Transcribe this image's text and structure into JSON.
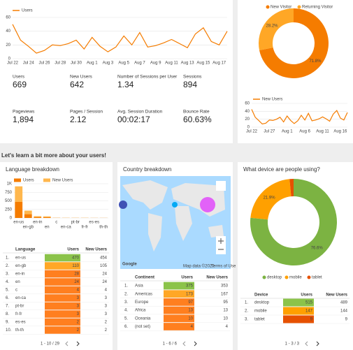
{
  "chart_data": [
    {
      "type": "line",
      "categories": [
        "Jul 22",
        null,
        "Jul 24",
        null,
        "Jul 26",
        null,
        "Jul 28",
        null,
        "Jul 30",
        null,
        "Aug 1",
        null,
        "Aug 3",
        null,
        "Aug 5",
        null,
        "Aug 7",
        null,
        "Aug 9",
        null,
        "Aug 11",
        null,
        "Aug 13",
        null,
        "Aug 15",
        null,
        "Aug 17",
        null
      ],
      "series": [
        {
          "name": "Users",
          "color": "#f57c00",
          "values": [
            50,
            27,
            18,
            8,
            12,
            20,
            19,
            22,
            27,
            14,
            31,
            18,
            10,
            17,
            33,
            20,
            38,
            17,
            19,
            23,
            28,
            22,
            16,
            36,
            45,
            25,
            20,
            40
          ]
        }
      ],
      "ylim": [
        0,
        60
      ],
      "yticks": [
        0,
        20,
        40,
        60
      ],
      "grid": true
    },
    {
      "type": "pie",
      "categories": [
        "New Visitor",
        "Returning Visitor"
      ],
      "values": [
        71.8,
        28.2
      ],
      "value_labels": [
        "71.8%",
        "28.2%"
      ],
      "colors": [
        "#f57c00",
        "#ffa726"
      ]
    },
    {
      "type": "line",
      "categories": [
        "Jul 22",
        null,
        null,
        null,
        null,
        "Jul 27",
        null,
        null,
        null,
        null,
        "Aug 1",
        null,
        null,
        null,
        null,
        "Aug 6",
        null,
        null,
        null,
        null,
        "Aug 11",
        null,
        null,
        null,
        null,
        "Aug 16",
        null,
        null
      ],
      "series": [
        {
          "name": "New Users",
          "color": "#f57c00",
          "values": [
            45,
            25,
            17,
            8,
            10,
            18,
            17,
            20,
            25,
            13,
            28,
            17,
            9,
            16,
            30,
            18,
            35,
            16,
            18,
            21,
            26,
            21,
            15,
            33,
            42,
            23,
            18,
            37
          ]
        }
      ],
      "ylim": [
        0,
        60
      ],
      "yticks": [
        0,
        20,
        40,
        60
      ],
      "grid": true
    },
    {
      "type": "bar",
      "title": "Language breakdown",
      "stacked": true,
      "categories": [
        "en-us",
        "en-gb",
        "en-in",
        "en",
        "c",
        "en-ca",
        "pt-br",
        "fr-fr",
        "es-es",
        "th-th"
      ],
      "series": [
        {
          "name": "Users",
          "color": "#f57c00",
          "values": [
            470,
            110,
            28,
            24,
            4,
            3,
            3,
            3,
            2,
            2
          ]
        },
        {
          "name": "New Users",
          "color": "#ffb74d",
          "values": [
            454,
            105,
            24,
            24,
            4,
            3,
            3,
            3,
            2,
            2
          ]
        }
      ],
      "ylim": [
        0,
        1000
      ],
      "yticks": [
        0,
        250,
        500,
        750,
        {
          "value": 1000,
          "label": "1K"
        }
      ],
      "grid": true
    },
    {
      "type": "pie",
      "title": "What device are people using?",
      "categories": [
        "desktop",
        "mobile",
        "tablet"
      ],
      "values": [
        76.6,
        21.9,
        1.5
      ],
      "value_labels": [
        "76.6%",
        "21.9%",
        null
      ],
      "colors": [
        "#7cb342",
        "#ffa000",
        "#e65100"
      ]
    }
  ],
  "metrics": [
    {
      "label": "Users",
      "value": "669"
    },
    {
      "label": "New Users",
      "value": "642"
    },
    {
      "label": "Number of Sessions per User",
      "value": "1.34"
    },
    {
      "label": "Sessions",
      "value": "894"
    },
    {
      "label": "Pageviews",
      "value": "1,894"
    },
    {
      "label": "Pages / Session",
      "value": "2.12"
    },
    {
      "label": "Avg. Session Duration",
      "value": "00:02:17"
    },
    {
      "label": "Bounce Rate",
      "value": "60.63%"
    }
  ],
  "section_title": "Let's learn a bit more about your users!",
  "map": {
    "title": "Country breakdown",
    "logo": "Google",
    "attribution": "Map data ©2020",
    "terms": "Terms of Use"
  },
  "tables": [
    {
      "header": [
        "Language",
        "Users",
        "New Users"
      ],
      "rows": [
        [
          "1.",
          "en-us",
          "470",
          "454"
        ],
        [
          "2.",
          "en-gb",
          "110",
          "105"
        ],
        [
          "3.",
          "en-in",
          "28",
          "24"
        ],
        [
          "4.",
          "en",
          "24",
          "24"
        ],
        [
          "5.",
          "c",
          "4",
          "4"
        ],
        [
          "6.",
          "en-ca",
          "3",
          "3"
        ],
        [
          "7.",
          "pt-br",
          "3",
          "3"
        ],
        [
          "8.",
          "fr-fr",
          "3",
          "3"
        ],
        [
          "9.",
          "es-es",
          "2",
          "2"
        ],
        [
          "10.",
          "th-th",
          "2",
          "2"
        ]
      ],
      "pagination": "1 - 10 / 29"
    },
    {
      "header": [
        "Continent",
        "Users",
        "New Users"
      ],
      "rows": [
        [
          "1.",
          "Asia",
          "375",
          "353"
        ],
        [
          "2.",
          "Americas",
          "173",
          "167"
        ],
        [
          "3.",
          "Europe",
          "97",
          "95"
        ],
        [
          "4.",
          "Africa",
          "13",
          "13"
        ],
        [
          "5.",
          "Oceania",
          "10",
          "10"
        ],
        [
          "6.",
          "(not set)",
          "4",
          "4"
        ]
      ],
      "pagination": "1 - 6 / 6"
    },
    {
      "header": [
        "Device",
        "Users",
        "New Users"
      ],
      "rows": [
        [
          "1.",
          "desktop",
          "515",
          "489"
        ],
        [
          "2.",
          "mobile",
          "147",
          "144"
        ],
        [
          "3.",
          "tablet",
          "9",
          "9"
        ]
      ],
      "pagination": "1 - 3 / 3"
    }
  ]
}
